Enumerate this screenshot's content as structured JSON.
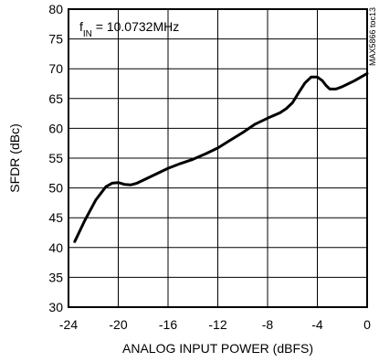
{
  "chart_data": {
    "type": "line",
    "xlabel": "ANALOG INPUT POWER (dBFS)",
    "ylabel": "SFDR (dBc)",
    "annotation": {
      "prefix": "f",
      "subscript": "IN",
      "suffix": " = 10.0732MHz"
    },
    "side_label": "MAX5866 toc13",
    "xlim": [
      -24,
      0
    ],
    "ylim": [
      30,
      80
    ],
    "xticks": [
      -24,
      -20,
      -16,
      -12,
      -8,
      -4,
      0
    ],
    "yticks": [
      30,
      35,
      40,
      45,
      50,
      55,
      60,
      65,
      70,
      75,
      80
    ],
    "grid": true,
    "series": [
      {
        "x": [
          -23.5,
          -22.7,
          -21.8,
          -21.0,
          -20.5,
          -20.0,
          -19.5,
          -19.0,
          -18.5,
          -18.0,
          -17.0,
          -16.0,
          -15.0,
          -14.0,
          -13.0,
          -12.0,
          -11.0,
          -10.0,
          -9.0,
          -8.0,
          -7.0,
          -6.5,
          -6.0,
          -5.5,
          -5.0,
          -4.5,
          -4.0,
          -3.6,
          -3.3,
          -3.0,
          -2.5,
          -2.0,
          -1.0,
          0.0
        ],
        "values": [
          41.0,
          44.5,
          48.0,
          50.2,
          50.8,
          50.9,
          50.6,
          50.5,
          50.8,
          51.3,
          52.3,
          53.3,
          54.1,
          54.8,
          55.7,
          56.7,
          58.0,
          59.3,
          60.7,
          61.7,
          62.6,
          63.3,
          64.3,
          66.0,
          67.6,
          68.6,
          68.6,
          68.0,
          67.2,
          66.6,
          66.6,
          67.0,
          68.0,
          69.2
        ]
      }
    ]
  }
}
